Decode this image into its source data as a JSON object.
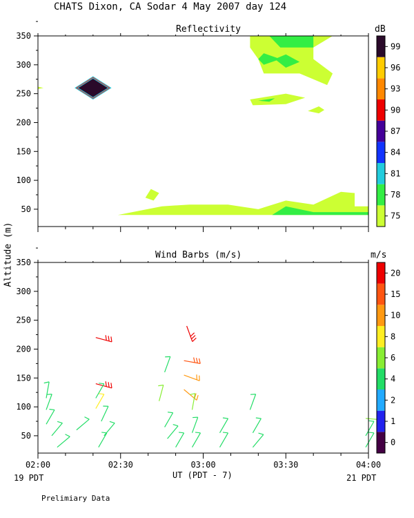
{
  "figure_title": "CHATS Dixon, CA  Sodar    4 May 2007  day 124",
  "shared_ylabel": "Altitude (m)",
  "footer_note": "Prelimiary Data",
  "xaxis": {
    "label": "UT  (PDT - 7)",
    "tick_labels": [
      "02:00",
      "02:30",
      "03:00",
      "03:30",
      "04:00"
    ],
    "start_local": "19 PDT",
    "end_local": "21 PDT"
  },
  "colors": {
    "yellowgreen": "#ccff33",
    "green": "#33ee44",
    "cyan": "#22ccdd",
    "dark": "#2a0a2a",
    "red": "#ee1111",
    "orange": "#ff8800",
    "gold": "#ffcc00"
  },
  "chart_data": [
    {
      "type": "heatmap",
      "title": "Reflectivity",
      "ylim": [
        20,
        350
      ],
      "xlim": [
        "02:00",
        "04:00"
      ],
      "yticks": [
        "350",
        "300",
        "250",
        "200",
        "150",
        "100",
        "50"
      ],
      "colorbar": {
        "unit": "dB",
        "levels": [
          "75",
          "78",
          "81",
          "84",
          "87",
          "90",
          "93",
          "96",
          "99"
        ],
        "colors": [
          "#ccff33",
          "#33ee44",
          "#22ccdd",
          "#1133ff",
          "#440099",
          "#ee0000",
          "#ff8800",
          "#ffcc00",
          "#2a0a2a"
        ]
      },
      "regions": [
        {
          "level": "75",
          "points": [
            [
              "02:00",
              262
            ],
            [
              "02:02",
              260
            ],
            [
              "02:00",
              258
            ]
          ]
        },
        {
          "level": "99",
          "points": [
            [
              "02:14",
              260
            ],
            [
              "02:20",
              278
            ],
            [
              "02:26",
              260
            ],
            [
              "02:20",
              242
            ]
          ]
        },
        {
          "level": "75",
          "points": [
            [
              "02:39",
              70
            ],
            [
              "02:41",
              85
            ],
            [
              "02:44",
              78
            ],
            [
              "02:42",
              65
            ]
          ]
        },
        {
          "level": "75",
          "points": [
            [
              "02:29",
              40
            ],
            [
              "02:45",
              55
            ],
            [
              "02:55",
              58
            ],
            [
              "03:09",
              58
            ],
            [
              "03:20",
              50
            ],
            [
              "03:30",
              65
            ],
            [
              "03:40",
              58
            ],
            [
              "03:50",
              80
            ],
            [
              "03:55",
              78
            ],
            [
              "03:55",
              55
            ],
            [
              "04:00",
              55
            ],
            [
              "04:00",
              40
            ]
          ]
        },
        {
          "level": "78",
          "points": [
            [
              "03:25",
              40
            ],
            [
              "03:30",
              55
            ],
            [
              "03:40",
              45
            ],
            [
              "04:00",
              45
            ],
            [
              "04:00",
              40
            ]
          ]
        },
        {
          "level": "75",
          "points": [
            [
              "03:17",
              350
            ],
            [
              "03:17",
              330
            ],
            [
              "03:20",
              310
            ],
            [
              "03:22",
              285
            ],
            [
              "03:30",
              285
            ],
            [
              "03:35",
              285
            ],
            [
              "03:45",
              265
            ],
            [
              "03:47",
              285
            ],
            [
              "03:40",
              310
            ],
            [
              "03:40",
              330
            ],
            [
              "03:47",
              350
            ]
          ]
        },
        {
          "level": "78",
          "points": [
            [
              "03:24",
              350
            ],
            [
              "03:28",
              330
            ],
            [
              "03:40",
              330
            ],
            [
              "03:40",
              350
            ]
          ]
        },
        {
          "level": "78",
          "points": [
            [
              "03:22",
              320
            ],
            [
              "03:28",
              310
            ],
            [
              "03:22",
              300
            ],
            [
              "03:20",
              310
            ]
          ]
        },
        {
          "level": "78",
          "points": [
            [
              "03:26",
              310
            ],
            [
              "03:30",
              295
            ],
            [
              "03:35",
              305
            ],
            [
              "03:30",
              318
            ]
          ]
        },
        {
          "level": "75",
          "points": [
            [
              "03:17",
              240
            ],
            [
              "03:30",
              250
            ],
            [
              "03:37",
              243
            ],
            [
              "03:30",
              232
            ],
            [
              "03:18",
              230
            ]
          ]
        },
        {
          "level": "78",
          "points": [
            [
              "03:20",
              238
            ],
            [
              "03:26",
              242
            ],
            [
              "03:24",
              236
            ]
          ]
        },
        {
          "level": "75",
          "points": [
            [
              "03:38",
              220
            ],
            [
              "03:42",
              228
            ],
            [
              "03:44",
              222
            ],
            [
              "03:42",
              216
            ]
          ]
        }
      ]
    },
    {
      "type": "scatter",
      "title": "Wind Barbs (m/s)",
      "ylim": [
        20,
        350
      ],
      "xlim": [
        "02:00",
        "04:00"
      ],
      "yticks": [
        "350",
        "300",
        "250",
        "200",
        "150",
        "100",
        "50"
      ],
      "colorbar": {
        "unit": "m/s",
        "levels": [
          "0",
          "1",
          "2",
          "4",
          "6",
          "8",
          "10",
          "15",
          "20"
        ],
        "colors": [
          "#440044",
          "#2222ee",
          "#22aaff",
          "#22dd66",
          "#88ee33",
          "#ffee22",
          "#ff9911",
          "#ff5511",
          "#ee0000"
        ]
      },
      "barbs": [
        {
          "x": "02:03",
          "y": 115,
          "speed": 5,
          "angle": -80
        },
        {
          "x": "02:03",
          "y": 95,
          "speed": 5,
          "angle": -70
        },
        {
          "x": "02:03",
          "y": 70,
          "speed": 5,
          "angle": -60
        },
        {
          "x": "02:05",
          "y": 50,
          "speed": 5,
          "angle": -50
        },
        {
          "x": "02:07",
          "y": 30,
          "speed": 5,
          "angle": -40
        },
        {
          "x": "02:14",
          "y": 60,
          "speed": 5,
          "angle": -40
        },
        {
          "x": "02:21",
          "y": 220,
          "speed": 20,
          "angle": 15
        },
        {
          "x": "02:21",
          "y": 140,
          "speed": 20,
          "angle": 15
        },
        {
          "x": "02:21",
          "y": 115,
          "speed": 5,
          "angle": -60
        },
        {
          "x": "02:21",
          "y": 97,
          "speed": 8,
          "angle": -60
        },
        {
          "x": "02:23",
          "y": 75,
          "speed": 5,
          "angle": -65
        },
        {
          "x": "02:24",
          "y": 50,
          "speed": 5,
          "angle": -50
        },
        {
          "x": "02:22",
          "y": 30,
          "speed": 5,
          "angle": -60
        },
        {
          "x": "02:46",
          "y": 160,
          "speed": 5,
          "angle": -70
        },
        {
          "x": "02:44",
          "y": 110,
          "speed": 6,
          "angle": -75
        },
        {
          "x": "02:46",
          "y": 65,
          "speed": 5,
          "angle": -60
        },
        {
          "x": "02:47",
          "y": 45,
          "speed": 5,
          "angle": -50
        },
        {
          "x": "02:50",
          "y": 30,
          "speed": 5,
          "angle": -60
        },
        {
          "x": "02:54",
          "y": 240,
          "speed": 20,
          "angle": 70
        },
        {
          "x": "02:53",
          "y": 180,
          "speed": 15,
          "angle": 10
        },
        {
          "x": "02:53",
          "y": 155,
          "speed": 10,
          "angle": 20
        },
        {
          "x": "02:53",
          "y": 130,
          "speed": 10,
          "angle": 40
        },
        {
          "x": "02:56",
          "y": 95,
          "speed": 6,
          "angle": -80
        },
        {
          "x": "02:56",
          "y": 55,
          "speed": 5,
          "angle": -70
        },
        {
          "x": "02:56",
          "y": 30,
          "speed": 5,
          "angle": -60
        },
        {
          "x": "03:06",
          "y": 55,
          "speed": 5,
          "angle": -60
        },
        {
          "x": "03:06",
          "y": 30,
          "speed": 5,
          "angle": -60
        },
        {
          "x": "03:17",
          "y": 95,
          "speed": 5,
          "angle": -70
        },
        {
          "x": "03:18",
          "y": 55,
          "speed": 5,
          "angle": -60
        },
        {
          "x": "03:18",
          "y": 30,
          "speed": 5,
          "angle": -50
        },
        {
          "x": "03:59",
          "y": 80,
          "speed": 6,
          "angle": 5
        },
        {
          "x": "03:59",
          "y": 50,
          "speed": 5,
          "angle": -60
        },
        {
          "x": "03:59",
          "y": 30,
          "speed": 5,
          "angle": -60
        }
      ]
    }
  ]
}
